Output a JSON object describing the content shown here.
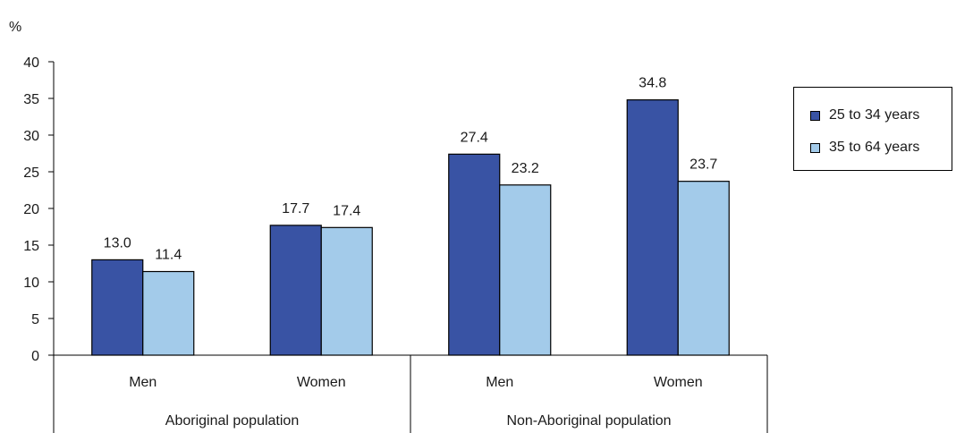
{
  "chart_data": {
    "type": "bar",
    "unit_label": "%",
    "ylim": [
      0,
      40
    ],
    "y_ticks": [
      "0",
      "5",
      "10",
      "15",
      "20",
      "25",
      "30",
      "35",
      "40"
    ],
    "groups": [
      {
        "label": "Aboriginal population",
        "categories": [
          "Men",
          "Women"
        ]
      },
      {
        "label": "Non-Aboriginal population",
        "categories": [
          "Men",
          "Women"
        ]
      }
    ],
    "series": [
      {
        "name": "25 to 34 years",
        "color": "#3953a4",
        "values": [
          13.0,
          17.7,
          27.4,
          34.8
        ],
        "labels": [
          "13.0",
          "17.7",
          "27.4",
          "34.8"
        ]
      },
      {
        "name": "35 to 64 years",
        "color": "#a3cbea",
        "values": [
          11.4,
          17.4,
          23.2,
          23.7
        ],
        "labels": [
          "11.4",
          "17.4",
          "23.2",
          "23.7"
        ]
      }
    ],
    "legend_position": "right",
    "grid": false
  }
}
